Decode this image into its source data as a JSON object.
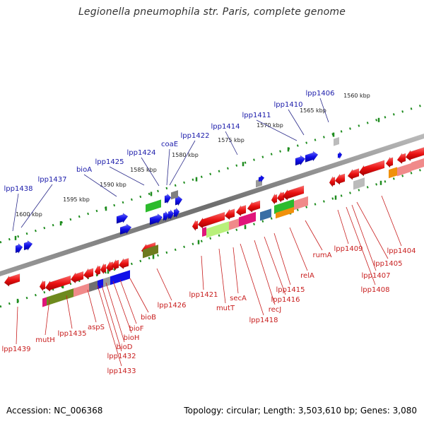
{
  "title": "Legionella pneumophila str. Paris, complete genome",
  "footer": {
    "accession": "Accession: NC_006368",
    "summary": "Topology: circular; Length: 3,503,610 bp; Genes: 3,080"
  },
  "ticks": [
    "1600 kbp",
    "1595 kbp",
    "1590 kbp",
    "1585 kbp",
    "1580 kbp",
    "1575 kbp",
    "1570 kbp",
    "1565 kbp",
    "1560 kbp"
  ],
  "forward_labels": [
    "lpp1438",
    "lpp1437",
    "bioA",
    "lpp1425",
    "lpp1424",
    "coaE",
    "lpp1422",
    "lpp1414",
    "lpp1411",
    "lpp1410",
    "lpp1406"
  ],
  "reverse_labels": [
    "lpp1439",
    "mutH",
    "lpp1435",
    "aspS",
    "lpp1433",
    "lpp1432",
    "bioD",
    "bioH",
    "bioF",
    "bioB",
    "lpp1426",
    "lpp1421",
    "mutT",
    "secA",
    "lpp1418",
    "recJ",
    "lpp1416",
    "lpp1415",
    "relA",
    "rumA",
    "lpp1409",
    "lpp1408",
    "lpp1407",
    "lpp1405",
    "lpp1404"
  ],
  "colors": {
    "forward_gene": "#1414e0",
    "reverse_gene": "#e61414",
    "backbone": "#707070",
    "forward_label": "#1a1aaa",
    "reverse_label": "#c81e1e",
    "tick_mark": "#1e8c1e"
  }
}
